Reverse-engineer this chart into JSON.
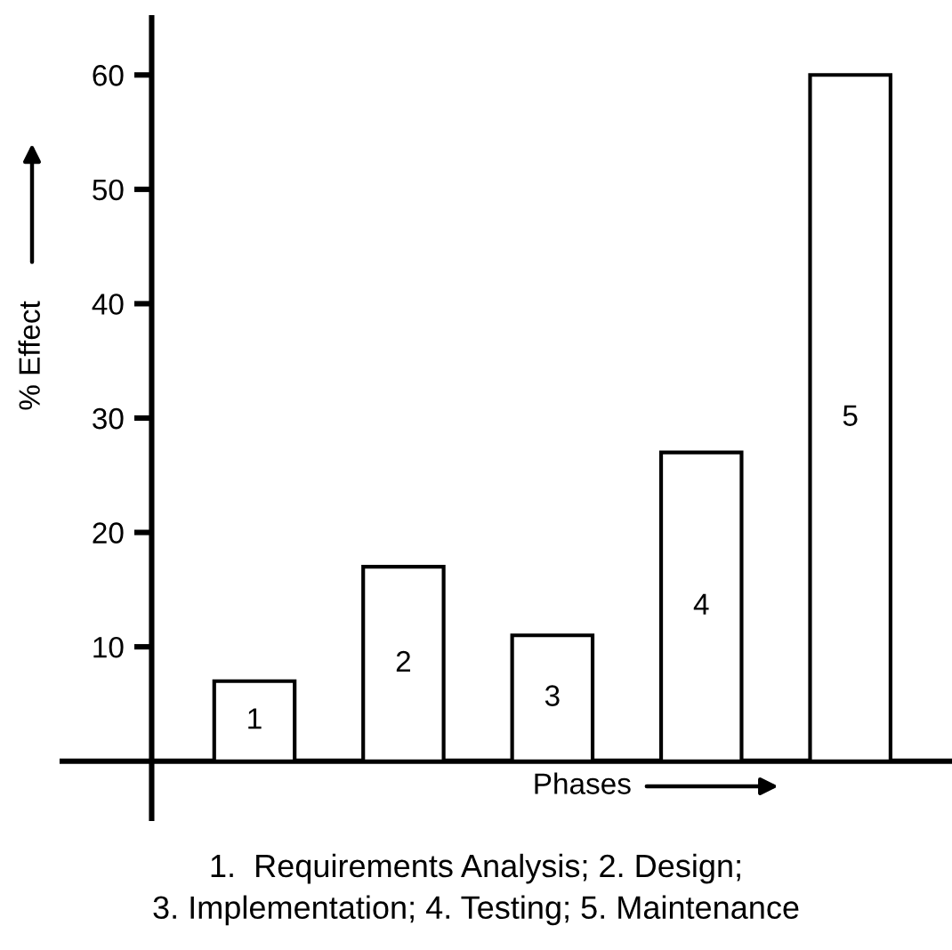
{
  "chart_data": {
    "type": "bar",
    "categories": [
      "1",
      "2",
      "3",
      "4",
      "5"
    ],
    "values": [
      7,
      17,
      11,
      27,
      60
    ],
    "color": "#ffffff",
    "xlabel": "Phases",
    "ylabel": "% Effect",
    "ylim": [
      -5,
      65
    ],
    "yticks": [
      10,
      20,
      30,
      40,
      50,
      60
    ],
    "annotations": [
      "1.  Requirements Analysis; 2. Design;\n3. Implementation; 4. Testing; 5. Maintenance"
    ]
  }
}
